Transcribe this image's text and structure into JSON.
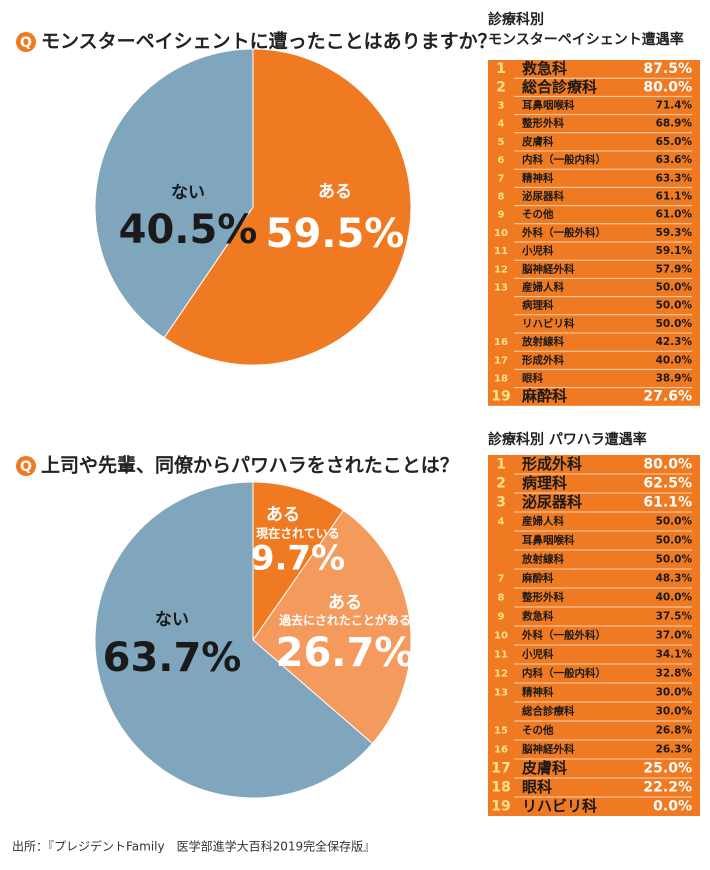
{
  "question_marker": "Q",
  "chart_data": [
    {
      "type": "pie",
      "question": "モンスターペイシェントに遭ったことはありますか？",
      "categories": [
        "ある",
        "ない"
      ],
      "values": [
        59.5,
        40.5
      ],
      "value_labels": [
        "59.5%",
        "40.5%"
      ],
      "colors": [
        "#f07a22",
        "#7fa6bd"
      ]
    },
    {
      "type": "pie",
      "question": "上司や先輩、同僚からパワハラをされたことは？",
      "categories": [
        "ある",
        "ある",
        "ない"
      ],
      "sublabels": [
        "現在されている",
        "過去にされたことがある",
        null
      ],
      "values": [
        9.7,
        26.7,
        63.7
      ],
      "value_labels": [
        "9.7%",
        "26.7%",
        "63.7%"
      ],
      "colors": [
        "#f07a22",
        "#f39a5c",
        "#7fa6bd"
      ]
    }
  ],
  "tables": [
    {
      "title_lines": [
        "診療科別",
        "モンスターペイシェント遭遇率"
      ],
      "rows": [
        [
          1,
          "救急科",
          "87.5%"
        ],
        [
          2,
          "総合診療科",
          "80.0%"
        ],
        [
          3,
          "耳鼻咽喉科",
          "71.4%"
        ],
        [
          4,
          "整形外科",
          "68.9%"
        ],
        [
          5,
          "皮膚科",
          "65.0%"
        ],
        [
          6,
          "内科（一般内科）",
          "63.6%"
        ],
        [
          7,
          "精神科",
          "63.3%"
        ],
        [
          8,
          "泌尿器科",
          "61.1%"
        ],
        [
          9,
          "その他",
          "61.0%"
        ],
        [
          10,
          "外科（一般外科）",
          "59.3%"
        ],
        [
          11,
          "小児科",
          "59.1%"
        ],
        [
          12,
          "脳神経外科",
          "57.9%"
        ],
        [
          13,
          "産婦人科",
          "50.0%"
        ],
        [
          null,
          "病理科",
          "50.0%"
        ],
        [
          null,
          "リハビリ科",
          "50.0%"
        ],
        [
          16,
          "放射線科",
          "42.3%"
        ],
        [
          17,
          "形成外科",
          "40.0%"
        ],
        [
          18,
          "眼科",
          "38.9%"
        ],
        [
          19,
          "麻酔科",
          "27.6%"
        ]
      ]
    },
    {
      "title_lines": [
        "診療科別 パワハラ遭遇率"
      ],
      "rows": [
        [
          1,
          "形成外科",
          "80.0%"
        ],
        [
          2,
          "病理科",
          "62.5%"
        ],
        [
          3,
          "泌尿器科",
          "61.1%"
        ],
        [
          4,
          "産婦人科",
          "50.0%"
        ],
        [
          null,
          "耳鼻咽喉科",
          "50.0%"
        ],
        [
          null,
          "放射線科",
          "50.0%"
        ],
        [
          7,
          "麻酔科",
          "48.3%"
        ],
        [
          8,
          "整形外科",
          "40.0%"
        ],
        [
          9,
          "救急科",
          "37.5%"
        ],
        [
          10,
          "外科（一般外科）",
          "37.0%"
        ],
        [
          11,
          "小児科",
          "34.1%"
        ],
        [
          12,
          "内科（一般内科）",
          "32.8%"
        ],
        [
          13,
          "精神科",
          "30.0%"
        ],
        [
          null,
          "総合診療科",
          "30.0%"
        ],
        [
          15,
          "その他",
          "26.8%"
        ],
        [
          16,
          "脳神経外科",
          "26.3%"
        ],
        [
          17,
          "皮膚科",
          "25.0%"
        ],
        [
          18,
          "眼科",
          "22.2%"
        ],
        [
          19,
          "リハビリ科",
          "0.0%"
        ]
      ]
    }
  ],
  "source": "出所：『プレジデントFamily　医学部進学大百科2019完全保存版』"
}
